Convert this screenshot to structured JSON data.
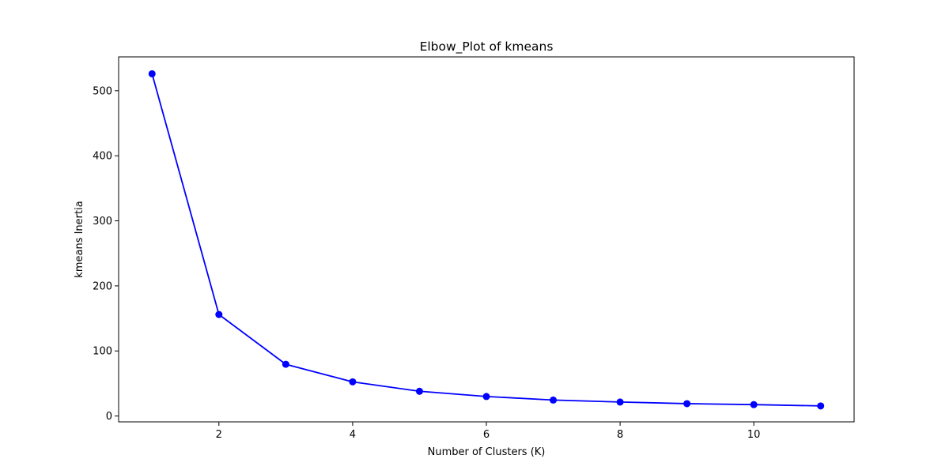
{
  "chart_data": {
    "type": "line",
    "title": "Elbow_Plot of kmeans",
    "xlabel": "Number of Clusters (K)",
    "ylabel": "kmeans Inertia",
    "x": [
      1,
      2,
      3,
      4,
      5,
      6,
      7,
      8,
      9,
      10,
      11
    ],
    "series": [
      {
        "values": [
          526,
          156,
          79.5,
          52.5,
          38,
          30,
          24.5,
          21.5,
          19,
          17.5,
          15.5
        ],
        "color": "#0000ff",
        "marker": "circle"
      }
    ],
    "xlim": [
      0.5,
      11.5
    ],
    "ylim": [
      -9,
      552
    ],
    "xticks": [
      2,
      4,
      6,
      8,
      10
    ],
    "yticks": [
      0,
      100,
      200,
      300,
      400,
      500
    ],
    "grid": false,
    "legend": "none"
  }
}
